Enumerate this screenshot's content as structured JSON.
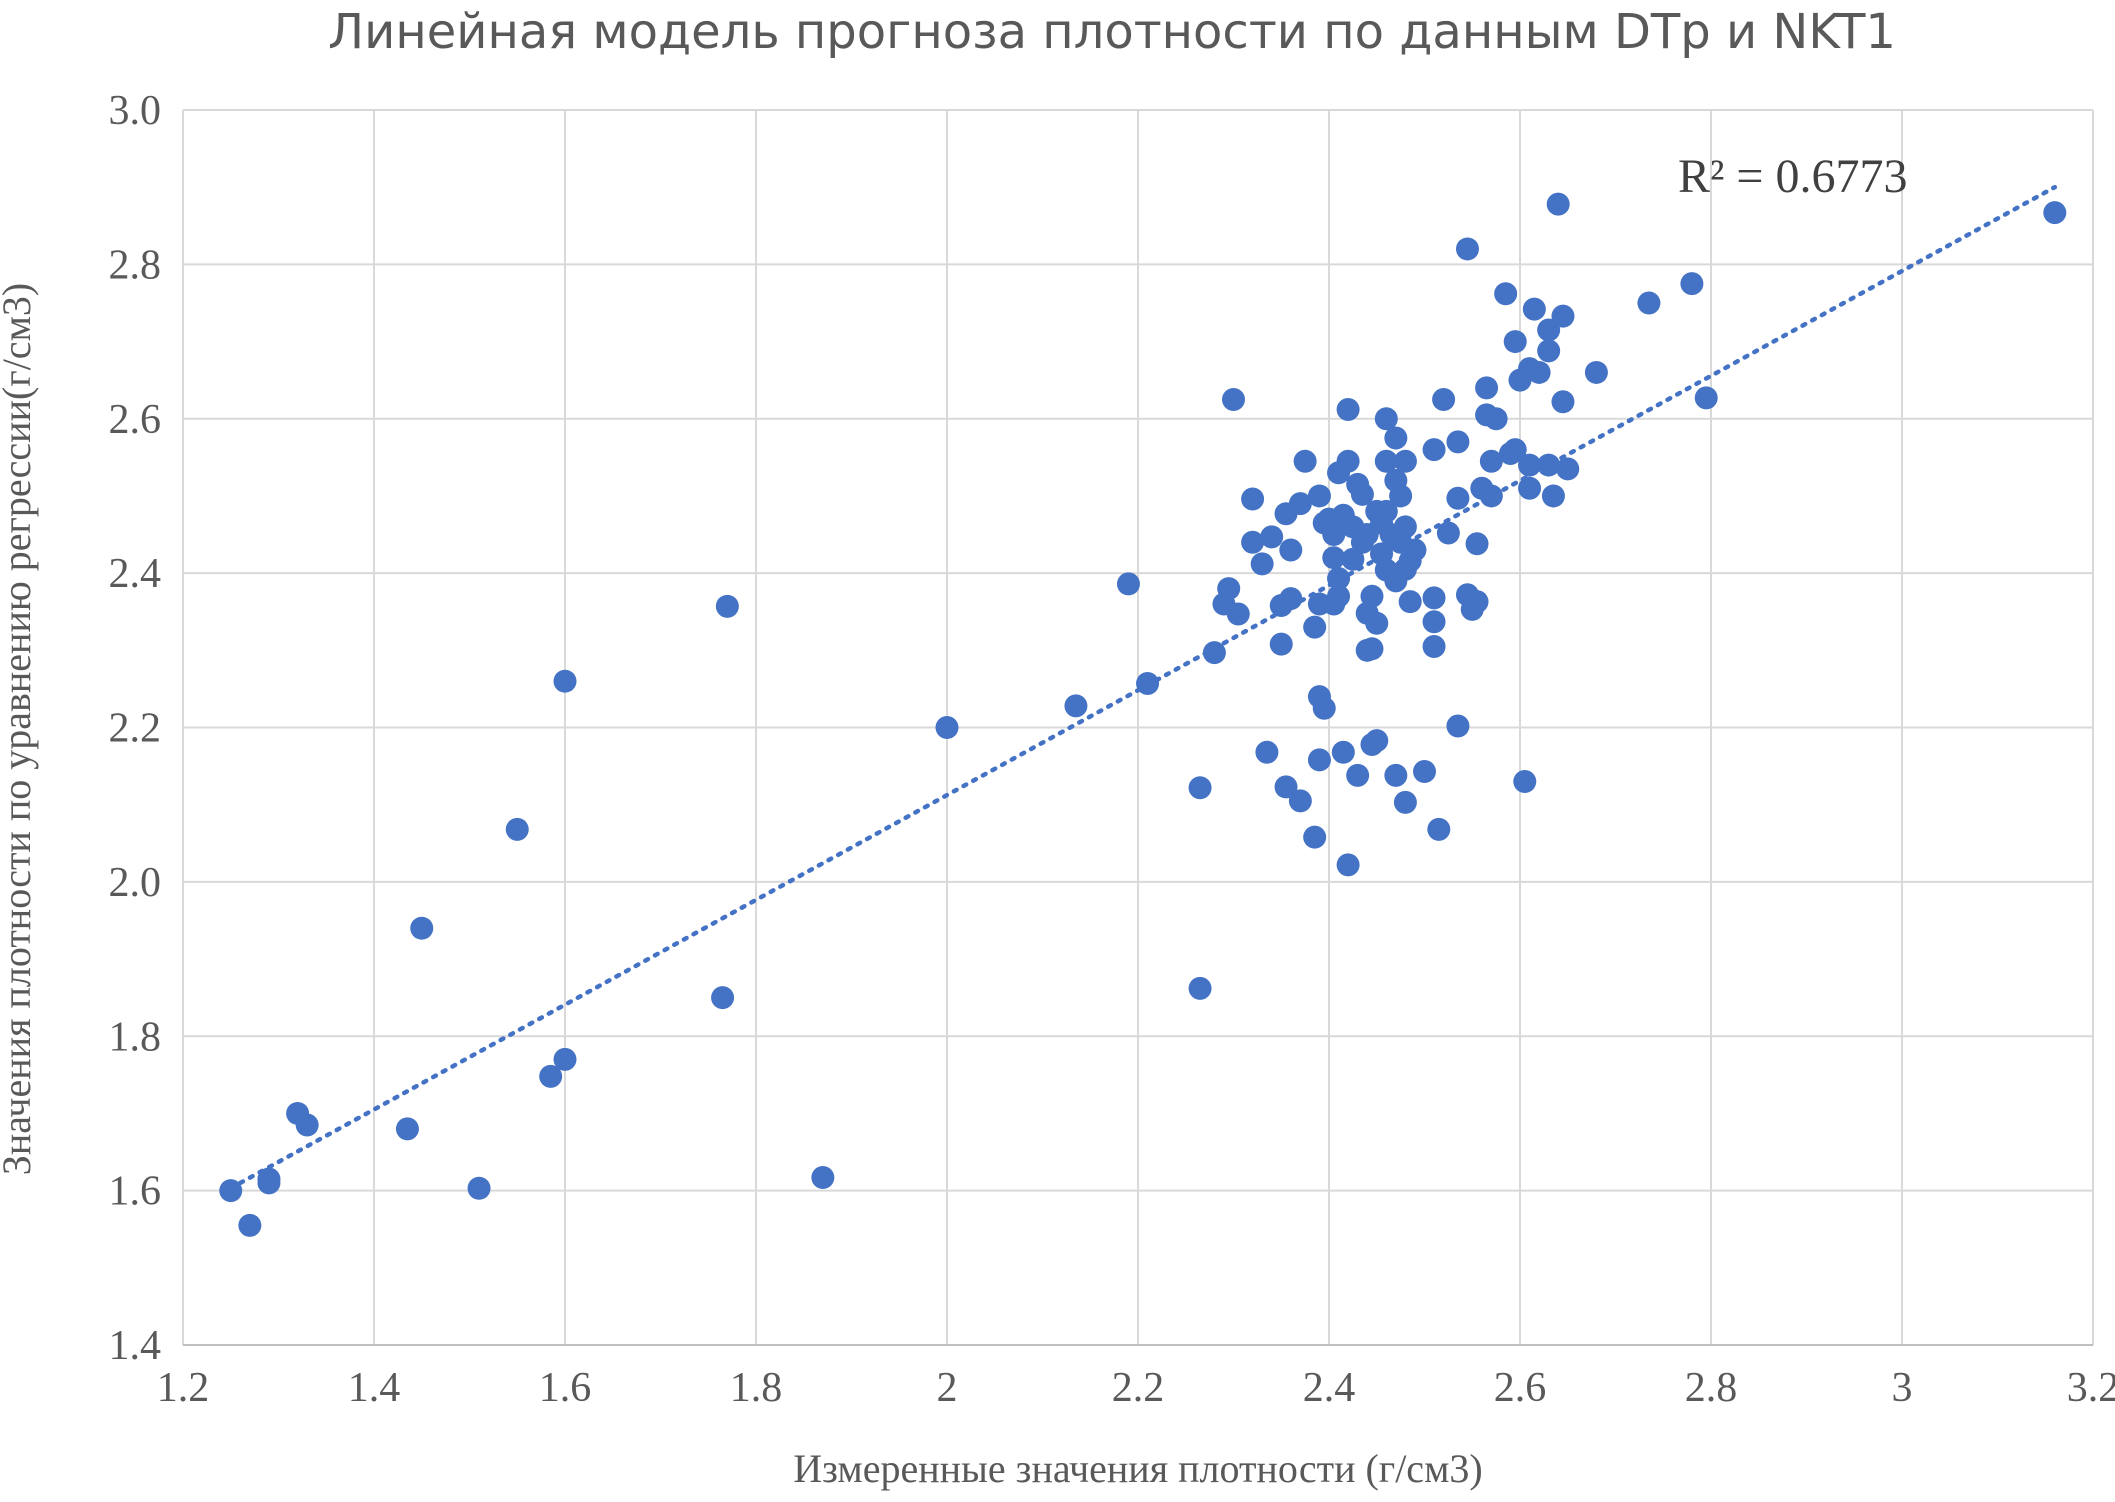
{
  "chart_data": {
    "type": "scatter",
    "title": "Линейная модель прогноза плотности по данным DTp и NKT1",
    "xlabel": "Измеренные значения плотности (г/см3)",
    "ylabel": "Значения плотности по уравнению регрессии(г/см3)",
    "xlim": [
      1.2,
      3.2
    ],
    "ylim": [
      1.4,
      3.0
    ],
    "x_ticks": [
      1.2,
      1.4,
      1.6,
      1.8,
      2,
      2.2,
      2.4,
      2.6,
      2.8,
      3,
      3.2
    ],
    "x_tick_labels": [
      "1.2",
      "1.4",
      "1.6",
      "1.8",
      "2",
      "2.2",
      "2.4",
      "2.6",
      "2.8",
      "3",
      "3.2"
    ],
    "y_ticks": [
      1.4,
      1.6,
      1.8,
      2.0,
      2.2,
      2.4,
      2.6,
      2.8,
      3.0
    ],
    "y_tick_labels": [
      "1.4",
      "1.6",
      "1.8",
      "2.0",
      "2.2",
      "2.4",
      "2.6",
      "2.8",
      "3.0"
    ],
    "grid": true,
    "legend": "none",
    "annotation": "R² = 0.6773",
    "marker_color": "#4472c4",
    "trendline": {
      "type": "linear",
      "style": "dotted",
      "x_range": [
        1.26,
        3.16
      ],
      "y_range": [
        1.61,
        2.9
      ]
    },
    "points": [
      [
        1.25,
        1.6
      ],
      [
        1.27,
        1.555
      ],
      [
        1.29,
        1.615
      ],
      [
        1.29,
        1.61
      ],
      [
        1.32,
        1.7
      ],
      [
        1.33,
        1.685
      ],
      [
        1.45,
        1.94
      ],
      [
        1.435,
        1.68
      ],
      [
        1.51,
        1.603
      ],
      [
        1.55,
        2.068
      ],
      [
        1.585,
        1.748
      ],
      [
        1.6,
        2.26
      ],
      [
        1.6,
        1.77
      ],
      [
        1.765,
        1.85
      ],
      [
        1.77,
        2.357
      ],
      [
        1.87,
        1.617
      ],
      [
        2.0,
        2.2
      ],
      [
        2.135,
        2.228
      ],
      [
        2.19,
        2.386
      ],
      [
        2.21,
        2.257
      ],
      [
        2.265,
        1.862
      ],
      [
        2.265,
        2.122
      ],
      [
        2.28,
        2.297
      ],
      [
        2.29,
        2.36
      ],
      [
        2.295,
        2.38
      ],
      [
        2.3,
        2.625
      ],
      [
        2.305,
        2.347
      ],
      [
        2.32,
        2.496
      ],
      [
        2.32,
        2.44
      ],
      [
        2.33,
        2.412
      ],
      [
        2.335,
        2.168
      ],
      [
        2.34,
        2.447
      ],
      [
        2.35,
        2.308
      ],
      [
        2.35,
        2.358
      ],
      [
        2.355,
        2.123
      ],
      [
        2.355,
        2.477
      ],
      [
        2.36,
        2.367
      ],
      [
        2.36,
        2.43
      ],
      [
        2.37,
        2.105
      ],
      [
        2.37,
        2.49
      ],
      [
        2.375,
        2.545
      ],
      [
        2.385,
        2.33
      ],
      [
        2.385,
        2.058
      ],
      [
        2.39,
        2.5
      ],
      [
        2.39,
        2.36
      ],
      [
        2.39,
        2.24
      ],
      [
        2.39,
        2.158
      ],
      [
        2.395,
        2.225
      ],
      [
        2.395,
        2.465
      ],
      [
        2.4,
        2.47
      ],
      [
        2.405,
        2.45
      ],
      [
        2.405,
        2.36
      ],
      [
        2.405,
        2.42
      ],
      [
        2.41,
        2.53
      ],
      [
        2.41,
        2.37
      ],
      [
        2.41,
        2.393
      ],
      [
        2.415,
        2.168
      ],
      [
        2.415,
        2.475
      ],
      [
        2.42,
        2.545
      ],
      [
        2.42,
        2.612
      ],
      [
        2.42,
        2.022
      ],
      [
        2.425,
        2.418
      ],
      [
        2.425,
        2.46
      ],
      [
        2.43,
        2.515
      ],
      [
        2.43,
        2.138
      ],
      [
        2.435,
        2.502
      ],
      [
        2.435,
        2.44
      ],
      [
        2.44,
        2.45
      ],
      [
        2.44,
        2.3
      ],
      [
        2.44,
        2.348
      ],
      [
        2.445,
        2.37
      ],
      [
        2.445,
        2.178
      ],
      [
        2.445,
        2.302
      ],
      [
        2.45,
        2.183
      ],
      [
        2.45,
        2.335
      ],
      [
        2.45,
        2.48
      ],
      [
        2.455,
        2.465
      ],
      [
        2.455,
        2.425
      ],
      [
        2.46,
        2.6
      ],
      [
        2.46,
        2.545
      ],
      [
        2.46,
        2.48
      ],
      [
        2.46,
        2.404
      ],
      [
        2.465,
        2.45
      ],
      [
        2.47,
        2.575
      ],
      [
        2.47,
        2.52
      ],
      [
        2.47,
        2.138
      ],
      [
        2.47,
        2.39
      ],
      [
        2.475,
        2.5
      ],
      [
        2.475,
        2.44
      ],
      [
        2.48,
        2.545
      ],
      [
        2.48,
        2.46
      ],
      [
        2.48,
        2.405
      ],
      [
        2.48,
        2.103
      ],
      [
        2.485,
        2.363
      ],
      [
        2.485,
        2.416
      ],
      [
        2.49,
        2.43
      ],
      [
        2.5,
        2.143
      ],
      [
        2.51,
        2.56
      ],
      [
        2.51,
        2.368
      ],
      [
        2.51,
        2.337
      ],
      [
        2.51,
        2.305
      ],
      [
        2.515,
        2.068
      ],
      [
        2.52,
        2.625
      ],
      [
        2.525,
        2.452
      ],
      [
        2.535,
        2.57
      ],
      [
        2.535,
        2.497
      ],
      [
        2.535,
        2.202
      ],
      [
        2.545,
        2.82
      ],
      [
        2.545,
        2.372
      ],
      [
        2.55,
        2.353
      ],
      [
        2.555,
        2.438
      ],
      [
        2.555,
        2.363
      ],
      [
        2.56,
        2.51
      ],
      [
        2.565,
        2.605
      ],
      [
        2.565,
        2.64
      ],
      [
        2.57,
        2.545
      ],
      [
        2.57,
        2.5
      ],
      [
        2.575,
        2.6
      ],
      [
        2.585,
        2.762
      ],
      [
        2.59,
        2.555
      ],
      [
        2.595,
        2.7
      ],
      [
        2.595,
        2.56
      ],
      [
        2.6,
        2.65
      ],
      [
        2.61,
        2.665
      ],
      [
        2.61,
        2.51
      ],
      [
        2.61,
        2.54
      ],
      [
        2.605,
        2.13
      ],
      [
        2.615,
        2.742
      ],
      [
        2.62,
        2.66
      ],
      [
        2.63,
        2.715
      ],
      [
        2.63,
        2.688
      ],
      [
        2.63,
        2.54
      ],
      [
        2.635,
        2.5
      ],
      [
        2.64,
        2.878
      ],
      [
        2.645,
        2.733
      ],
      [
        2.645,
        2.622
      ],
      [
        2.65,
        2.535
      ],
      [
        2.68,
        2.66
      ],
      [
        2.735,
        2.75
      ],
      [
        2.78,
        2.775
      ],
      [
        2.795,
        2.627
      ],
      [
        3.16,
        2.867
      ]
    ]
  }
}
